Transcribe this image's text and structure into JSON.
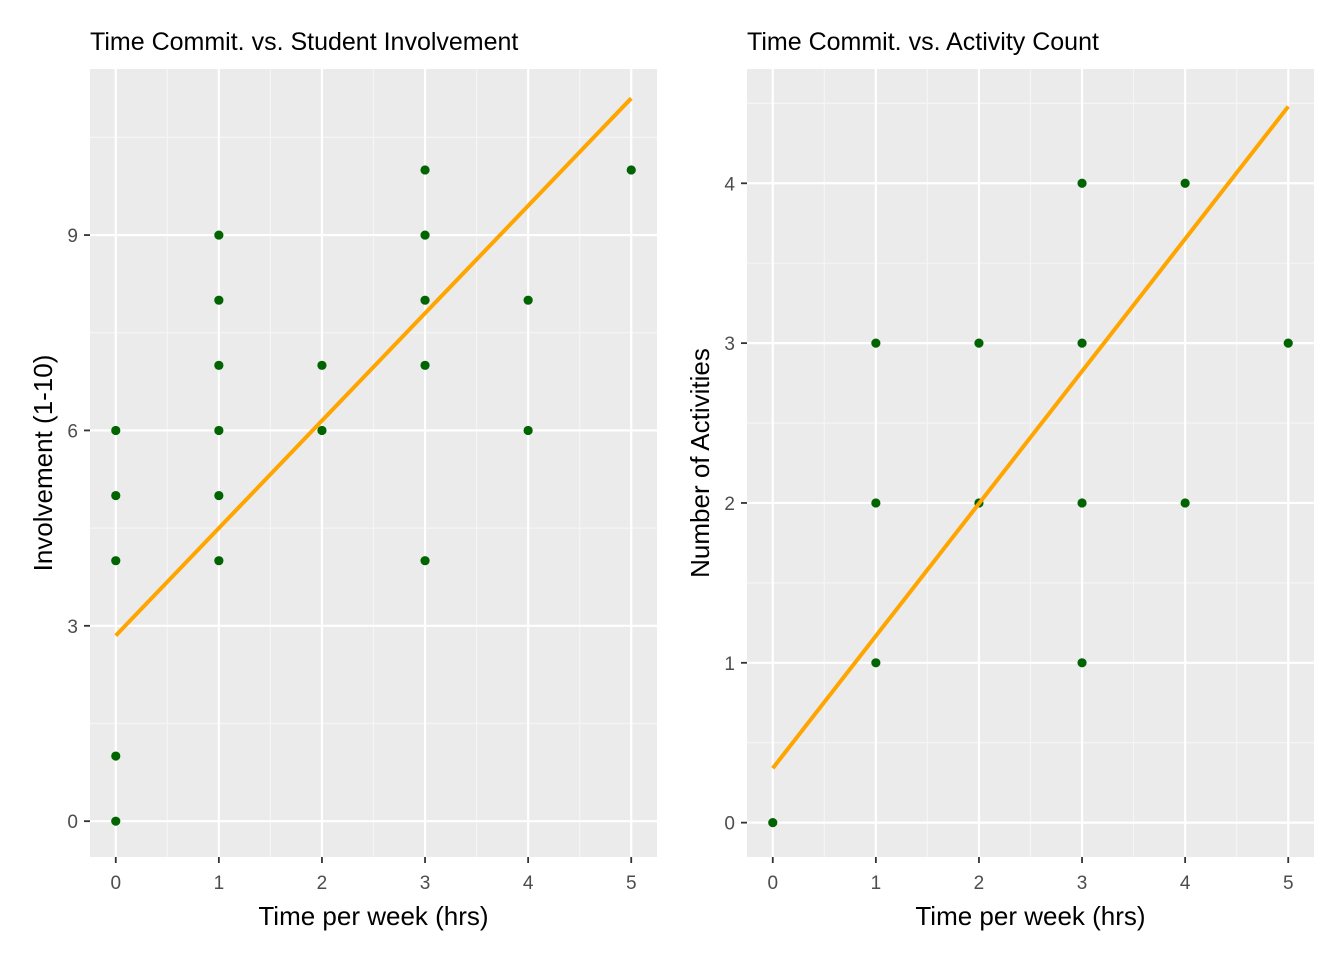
{
  "colors": {
    "panel_background": "#ebebeb",
    "grid_major": "#ffffff",
    "grid_minor": "#f5f5f5",
    "point": "#006400",
    "fit_line": "#ffa500",
    "tick": "#333333",
    "tick_label": "#4d4d4d"
  },
  "chart_data": [
    {
      "type": "scatter",
      "title": "Time Commit. vs. Student Involvement",
      "xlabel": "Time per week (hrs)",
      "ylabel": "Involvement (1-10)",
      "xlim": [
        -0.25,
        5.25
      ],
      "ylim": [
        -0.55,
        11.55
      ],
      "x_ticks": [
        0,
        1,
        2,
        3,
        4,
        5
      ],
      "x_tick_labels": [
        "0",
        "1",
        "2",
        "3",
        "4",
        "5"
      ],
      "y_ticks": [
        0,
        3,
        6,
        9
      ],
      "y_tick_labels": [
        "0",
        "3",
        "6",
        "9"
      ],
      "grid": true,
      "points": [
        {
          "x": 0,
          "y": 0
        },
        {
          "x": 0,
          "y": 1
        },
        {
          "x": 0,
          "y": 4
        },
        {
          "x": 0,
          "y": 5
        },
        {
          "x": 0,
          "y": 6
        },
        {
          "x": 1,
          "y": 4
        },
        {
          "x": 1,
          "y": 5
        },
        {
          "x": 1,
          "y": 6
        },
        {
          "x": 1,
          "y": 7
        },
        {
          "x": 1,
          "y": 8
        },
        {
          "x": 1,
          "y": 9
        },
        {
          "x": 2,
          "y": 6
        },
        {
          "x": 2,
          "y": 7
        },
        {
          "x": 3,
          "y": 4
        },
        {
          "x": 3,
          "y": 7
        },
        {
          "x": 3,
          "y": 8
        },
        {
          "x": 3,
          "y": 9
        },
        {
          "x": 3,
          "y": 10
        },
        {
          "x": 4,
          "y": 6
        },
        {
          "x": 4,
          "y": 8
        },
        {
          "x": 5,
          "y": 10
        }
      ],
      "fit_line": {
        "x": [
          0,
          5
        ],
        "y": [
          2.85,
          11.1
        ]
      }
    },
    {
      "type": "scatter",
      "title": "Time Commit. vs. Activity Count",
      "xlabel": "Time per week (hrs)",
      "ylabel": "Number of Activities",
      "xlim": [
        -0.25,
        5.25
      ],
      "ylim": [
        -0.215,
        4.715
      ],
      "x_ticks": [
        0,
        1,
        2,
        3,
        4,
        5
      ],
      "x_tick_labels": [
        "0",
        "1",
        "2",
        "3",
        "4",
        "5"
      ],
      "y_ticks": [
        0,
        1,
        2,
        3,
        4
      ],
      "y_tick_labels": [
        "0",
        "1",
        "2",
        "3",
        "4"
      ],
      "grid": true,
      "points": [
        {
          "x": 0,
          "y": 0
        },
        {
          "x": 1,
          "y": 1
        },
        {
          "x": 1,
          "y": 2
        },
        {
          "x": 1,
          "y": 3
        },
        {
          "x": 2,
          "y": 2
        },
        {
          "x": 2,
          "y": 3
        },
        {
          "x": 3,
          "y": 1
        },
        {
          "x": 3,
          "y": 2
        },
        {
          "x": 3,
          "y": 3
        },
        {
          "x": 3,
          "y": 4
        },
        {
          "x": 4,
          "y": 2
        },
        {
          "x": 4,
          "y": 4
        },
        {
          "x": 5,
          "y": 3
        }
      ],
      "fit_line": {
        "x": [
          0,
          5
        ],
        "y": [
          0.34,
          4.48
        ]
      }
    }
  ]
}
